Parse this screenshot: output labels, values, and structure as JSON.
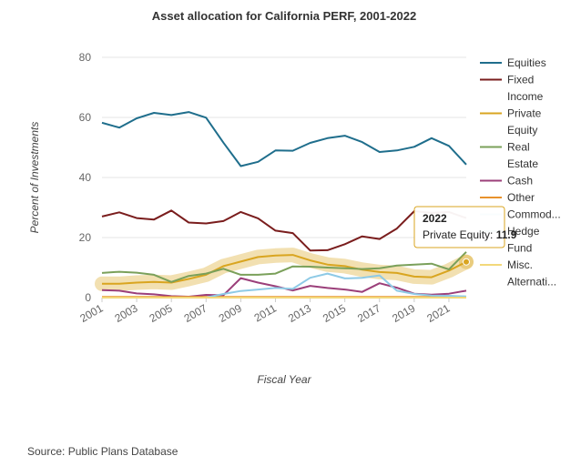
{
  "chart_data": {
    "type": "line",
    "title": "Asset allocation for California PERF, 2001-2022",
    "xlabel": "Fiscal Year",
    "ylabel": "Percent of Investments",
    "ylim": [
      0,
      80
    ],
    "yticks": [
      0,
      20,
      40,
      60,
      80
    ],
    "x": [
      2001,
      2002,
      2003,
      2004,
      2005,
      2006,
      2007,
      2008,
      2009,
      2010,
      2011,
      2012,
      2013,
      2014,
      2015,
      2016,
      2017,
      2018,
      2019,
      2020,
      2021,
      2022
    ],
    "xtick_labels": [
      "2001",
      "2003",
      "2005",
      "2007",
      "2009",
      "2011",
      "2013",
      "2015",
      "2017",
      "2019",
      "2021"
    ],
    "xtick_values": [
      2001,
      2003,
      2005,
      2007,
      2009,
      2011,
      2013,
      2015,
      2017,
      2019,
      2021
    ],
    "grid": true,
    "legend_position": "right",
    "highlight_series": "Private Equity",
    "series": [
      {
        "name": "Equities",
        "legend_lines": [
          "Equities"
        ],
        "color": "#1f6e8c",
        "values": [
          58.2,
          56.6,
          59.7,
          61.5,
          60.8,
          61.8,
          59.9,
          51.6,
          43.8,
          45.2,
          49.0,
          48.9,
          51.5,
          53.1,
          53.9,
          51.8,
          48.5,
          49.0,
          50.2,
          53.1,
          50.5,
          44.3
        ]
      },
      {
        "name": "Fixed Income",
        "legend_lines": [
          "Fixed",
          "Income"
        ],
        "color": "#7a1d1d",
        "values": [
          27.0,
          28.4,
          26.5,
          26.0,
          29.0,
          25.0,
          24.7,
          25.5,
          28.5,
          26.4,
          22.3,
          21.5,
          15.7,
          15.8,
          17.8,
          20.4,
          19.5,
          23.0,
          28.8,
          28.2,
          28.5,
          26.5
        ]
      },
      {
        "name": "Private Equity",
        "legend_lines": [
          "Private",
          "Equity"
        ],
        "color": "#d9a520",
        "values": [
          4.6,
          4.6,
          5.0,
          5.2,
          5.0,
          6.2,
          7.6,
          10.5,
          12.0,
          13.5,
          14.0,
          14.2,
          12.4,
          11.0,
          10.5,
          9.3,
          8.5,
          8.2,
          7.0,
          6.8,
          9.0,
          11.9
        ]
      },
      {
        "name": "Real Estate",
        "legend_lines": [
          "Real",
          "Estate"
        ],
        "color": "#7aa05a",
        "values": [
          8.2,
          8.6,
          8.3,
          7.6,
          5.2,
          7.2,
          8.0,
          9.6,
          7.6,
          7.6,
          8.0,
          10.4,
          10.3,
          10.0,
          9.8,
          9.5,
          9.8,
          10.7,
          11.0,
          11.3,
          9.4,
          15.2
        ]
      },
      {
        "name": "Cash",
        "legend_lines": [
          "Cash"
        ],
        "color": "#9b3f7a",
        "values": [
          2.5,
          2.3,
          1.4,
          1.1,
          0.5,
          0.3,
          0.9,
          0.8,
          6.5,
          5.0,
          3.8,
          2.4,
          3.9,
          3.2,
          2.7,
          1.9,
          4.8,
          3.3,
          1.3,
          1.0,
          1.3,
          2.3
        ]
      },
      {
        "name": "Other",
        "legend_lines": [
          "Other"
        ],
        "color": "#e8922c",
        "values": [
          0.2,
          0.2,
          0.2,
          0.2,
          0.2,
          0.2,
          0.2,
          0.2,
          0.2,
          0.2,
          0.2,
          0.2,
          0.2,
          0.2,
          0.2,
          0.2,
          0.2,
          0.2,
          0.2,
          0.2,
          0.2,
          0.2
        ]
      },
      {
        "name": "Commodities",
        "legend_lines": [
          "Commod..."
        ],
        "color": "#8ecae6",
        "values": [
          0,
          0,
          0,
          0,
          0,
          0,
          0,
          1.2,
          2.2,
          2.7,
          3.2,
          2.9,
          6.6,
          8.0,
          6.4,
          6.6,
          7.4,
          2.3,
          1.2,
          0.7,
          0.6,
          0.4
        ]
      },
      {
        "name": "Hedge Fund",
        "legend_lines": [
          "Hedge",
          "Fund"
        ],
        "color": "#6aa6a0",
        "values": [
          0,
          0,
          0,
          0,
          0,
          0,
          0,
          0,
          0,
          0,
          0,
          0,
          0,
          0,
          0,
          0,
          0,
          0,
          0,
          0,
          0,
          0
        ]
      },
      {
        "name": "Misc. Alternatives",
        "legend_lines": [
          "Misc.",
          "Alternati..."
        ],
        "color": "#f2d87a",
        "values": [
          0,
          0,
          0,
          0,
          0,
          0,
          0,
          0,
          0,
          0,
          0,
          0,
          0,
          0,
          0,
          0,
          0,
          0,
          0,
          0,
          0,
          0
        ]
      }
    ],
    "tooltip": {
      "title": "2022",
      "label": "Private Equity: ",
      "value": "11.9"
    }
  },
  "source": "Source: Public Plans Database"
}
